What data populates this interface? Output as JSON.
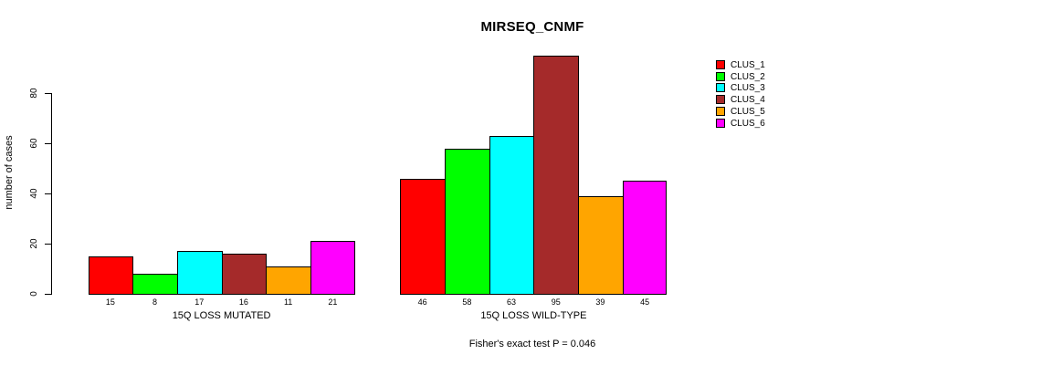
{
  "chart_data": {
    "type": "bar",
    "title": "MIRSEQ_CNMF",
    "ylabel": "number of cases",
    "ylim": [
      0,
      95
    ],
    "yticks": [
      0,
      20,
      40,
      60,
      80
    ],
    "grid": false,
    "legend_position": "right",
    "legend": [
      {
        "name": "CLUS_1",
        "color": "#FF0000"
      },
      {
        "name": "CLUS_2",
        "color": "#00FF00"
      },
      {
        "name": "CLUS_3",
        "color": "#00FFFF"
      },
      {
        "name": "CLUS_4",
        "color": "#A52A2A"
      },
      {
        "name": "CLUS_5",
        "color": "#FFA500"
      },
      {
        "name": "CLUS_6",
        "color": "#FF00FF"
      }
    ],
    "groups": [
      {
        "label": "15Q LOSS MUTATED",
        "values": [
          15,
          8,
          17,
          16,
          11,
          21
        ]
      },
      {
        "label": "15Q LOSS WILD-TYPE",
        "values": [
          46,
          58,
          63,
          95,
          39,
          45
        ]
      }
    ],
    "annotation": "Fisher's exact test P = 0.046"
  }
}
